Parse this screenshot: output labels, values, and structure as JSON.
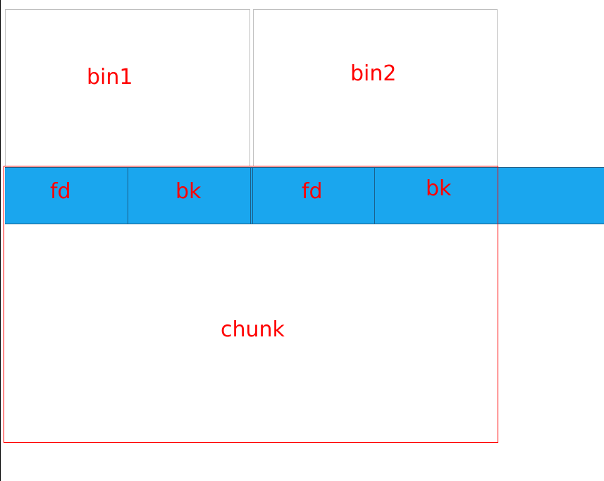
{
  "diagram": {
    "bins": [
      {
        "label": "bin1"
      },
      {
        "label": "bin2"
      }
    ],
    "pointers": [
      {
        "label": "fd"
      },
      {
        "label": "bk"
      },
      {
        "label": "fd"
      },
      {
        "label": "bk"
      }
    ],
    "chunk": {
      "label": "chunk"
    }
  },
  "colors": {
    "label_text": "#ff0000",
    "pointer_strip": "#1aa6ee",
    "chunk_border": "#ff0000",
    "bin_border": "#bfbfbf"
  }
}
